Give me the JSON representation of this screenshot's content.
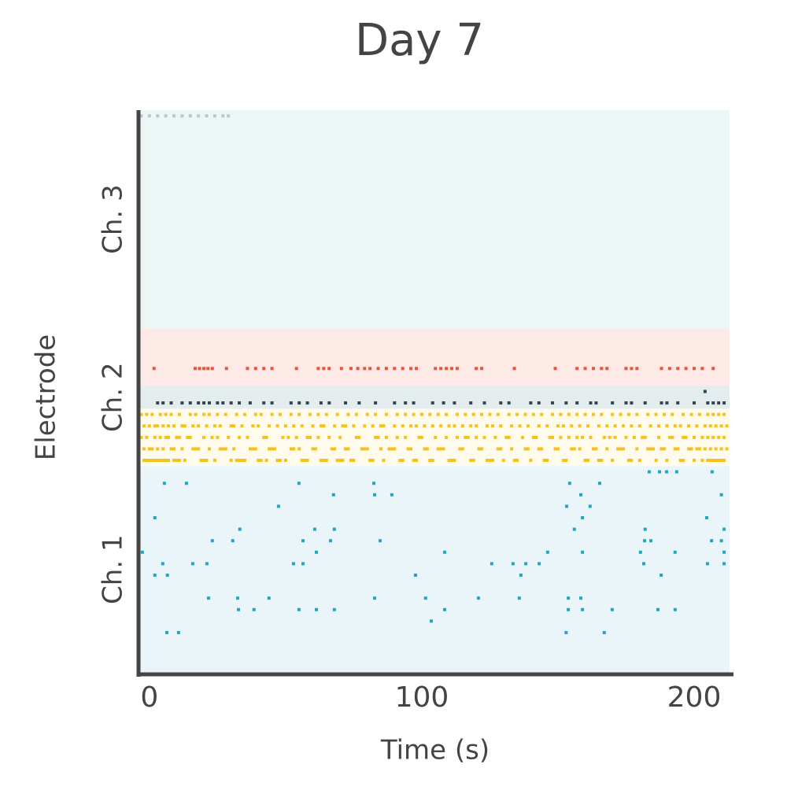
{
  "chart_data": {
    "type": "raster",
    "title": "Day 7",
    "xlabel": "Time (s)",
    "ylabel": "Electrode",
    "xlim": [
      -4,
      213
    ],
    "xticks": [
      0,
      100,
      200
    ],
    "channels": [
      {
        "label": "Ch. 1",
        "bands": [
          {
            "fill": "#e9f5f8",
            "color": "#1fa6c4",
            "rows": [
              [],
              [],
              [],
              [
                6.4,
                10.7,
                153,
                167
              ],
              [
                103.5
              ],
              [
                32.7,
                38.4,
                54.9,
                61.3,
                67.9,
                108.4,
                153.8,
                159,
                169.9,
                186.7,
                193
              ],
              [
                21.7,
                32.4,
                43.9,
                82.7,
                101.4,
                120.8,
                135.8,
                153.8,
                158.4
              ],
              [],
              [
                2,
                6.6,
                97.7,
                136.4,
                187.9
              ],
              [
                4.9,
                15.9,
                21.1,
                52.9,
                56.4,
                125.7,
                133.5,
                138.2,
                143.1,
                181.5,
                204.9,
                211
              ],
              [
                -2.6,
                61.3,
                108.4,
                146.2,
                159,
                180.3,
                193,
                211
              ],
              [
                23.1,
                30.6,
                56.4,
                66.5,
                84.7,
                181.8,
                184.1,
                206.4,
                210
              ],
              [
                33.2,
                60.7,
                67.9,
                156,
                182,
                211
              ],
              [
                2,
                159,
                204.6
              ],
              [
                47.4,
                153.2,
                161.8
              ],
              [
                67.6,
                82.7,
                89,
                158.4,
                210
              ],
              [
                5.5,
                13.6,
                54.9,
                82.4,
                154.3,
                165.3
              ],
              [
                183.5,
                187.3,
                189.9,
                193.6,
                206.6
              ]
            ]
          }
        ]
      },
      {
        "label": "Ch. 2",
        "bands": [
          {
            "fill": "#fffbec",
            "color": "#f4c21b",
            "rows": [
              [
                -2,
                -1,
                0,
                1,
                2,
                3,
                4,
                5,
                6,
                7,
                9,
                10,
                11,
                13,
                19,
                20,
                21,
                24,
                30,
                32,
                33,
                34,
                35,
                40,
                41,
                43,
                47,
                48,
                50,
                56,
                57,
                58,
                63,
                64,
                65,
                69,
                70,
                71,
                74,
                75,
                81,
                82,
                86,
                92,
                93,
                97,
                98,
                103,
                104,
                110,
                111,
                112,
                118,
                119,
                124,
                125,
                126,
                130,
                134,
                135,
                140,
                145,
                146,
                152,
                153,
                160,
                161,
                165,
                166,
                170,
                176,
                177,
                180,
                186,
                190,
                195,
                196,
                200,
                203,
                205,
                206,
                207,
                208,
                209,
                210,
                211
              ],
              [
                -2,
                0,
                1,
                3,
                5,
                8,
                9,
                12,
                16,
                17,
                18,
                22,
                26,
                27,
                28,
                31,
                37,
                38,
                39,
                44,
                45,
                46,
                52,
                53,
                55,
                60,
                61,
                67,
                68,
                72,
                73,
                78,
                79,
                80,
                85,
                88,
                89,
                90,
                95,
                96,
                101,
                102,
                106,
                107,
                108,
                114,
                115,
                121,
                122,
                128,
                129,
                133,
                138,
                139,
                143,
                144,
                149,
                150,
                155,
                156,
                158,
                163,
                164,
                168,
                172,
                173,
                174,
                179,
                183,
                184,
                185,
                188,
                189,
                193,
                194,
                198,
                199,
                201,
                202,
                204,
                206,
                208,
                210,
                212
              ],
              [
                -3,
                -1,
                2,
                4,
                6,
                7,
                10,
                11,
                14,
                15,
                20,
                23,
                25,
                29,
                33,
                36,
                42,
                43,
                49,
                51,
                54,
                58,
                59,
                62,
                66,
                70,
                76,
                77,
                83,
                84,
                87,
                91,
                94,
                99,
                100,
                105,
                109,
                113,
                116,
                117,
                120,
                123,
                127,
                131,
                132,
                137,
                141,
                142,
                147,
                148,
                151,
                154,
                157,
                159,
                162,
                167,
                169,
                171,
                175,
                178,
                181,
                182,
                187,
                191,
                192,
                196,
                197,
                200,
                203,
                205,
                207,
                209,
                211
              ],
              [
                -2,
                0,
                2,
                3,
                5,
                7,
                9,
                12,
                13,
                16,
                18,
                21,
                24,
                26,
                30,
                31,
                34,
                38,
                40,
                44,
                47,
                50,
                53,
                56,
                60,
                63,
                64,
                68,
                71,
                72,
                75,
                79,
                82,
                85,
                86,
                90,
                93,
                96,
                98,
                101,
                104,
                107,
                110,
                112,
                115,
                118,
                120,
                124,
                126,
                129,
                133,
                136,
                139,
                143,
                146,
                150,
                152,
                155,
                158,
                161,
                165,
                168,
                171,
                174,
                177,
                180,
                184,
                187,
                190,
                193,
                195,
                198,
                201,
                204,
                206,
                208,
                210,
                212
              ],
              [
                -3,
                -1,
                1,
                4,
                6,
                8,
                11,
                15,
                17,
                20,
                22,
                25,
                28,
                32,
                35,
                39,
                41,
                45,
                48,
                52,
                55,
                59,
                62,
                65,
                69,
                73,
                76,
                80,
                83,
                87,
                91,
                94,
                97,
                100,
                103,
                106,
                109,
                113,
                116,
                119,
                122,
                125,
                128,
                132,
                135,
                138,
                141,
                144,
                148,
                151,
                154,
                157,
                160,
                163,
                166,
                170,
                173,
                176,
                179,
                183,
                186,
                189,
                192,
                196,
                199,
                202,
                205,
                207,
                209,
                211
              ]
            ]
          },
          {
            "fill": "#e5ecee",
            "color": "#2b4858",
            "rows": [
              [
                3,
                5,
                8,
                12,
                15,
                18,
                20,
                22,
                25,
                27,
                30,
                33,
                37,
                42,
                45,
                52,
                55,
                58,
                63,
                66,
                72,
                77,
                83,
                90,
                94,
                97,
                104,
                108,
                112,
                118,
                123,
                129,
                132,
                140,
                143,
                148,
                153,
                157,
                162,
                164,
                170,
                175,
                177,
                182,
                188,
                190,
                194,
                200,
                205,
                207,
                209,
                211
              ],
              [
                204
              ]
            ]
          },
          {
            "fill": "#fdeae7",
            "color": "#e8553a",
            "rows": [
              [],
              [
                1.7,
                16.8,
                18.4,
                20,
                21.5,
                23.1,
                28.3,
                36,
                39,
                42,
                45,
                54,
                62,
                64,
                66,
                70.5,
                74,
                76.5,
                79,
                81,
                84,
                87,
                90,
                93,
                96,
                98,
                105,
                107,
                109,
                111,
                113,
                120,
                122,
                134,
                149,
                157,
                160,
                163,
                166,
                168,
                175,
                177,
                179,
                188,
                191,
                194,
                197,
                200,
                203,
                207
              ],
              [],
              [],
              []
            ]
          }
        ]
      },
      {
        "label": "Ch. 3",
        "bands": [
          {
            "fill": "#ecf6f5",
            "color": "#b8c6d0",
            "rows": [
              [],
              [],
              [],
              [],
              [],
              [],
              [],
              [],
              [],
              [],
              [],
              [],
              [],
              [],
              [],
              [],
              [],
              [],
              [
                -3,
                0,
                3,
                6,
                9,
                12,
                15,
                18,
                21,
                24,
                27,
                29
              ]
            ]
          }
        ]
      }
    ]
  }
}
